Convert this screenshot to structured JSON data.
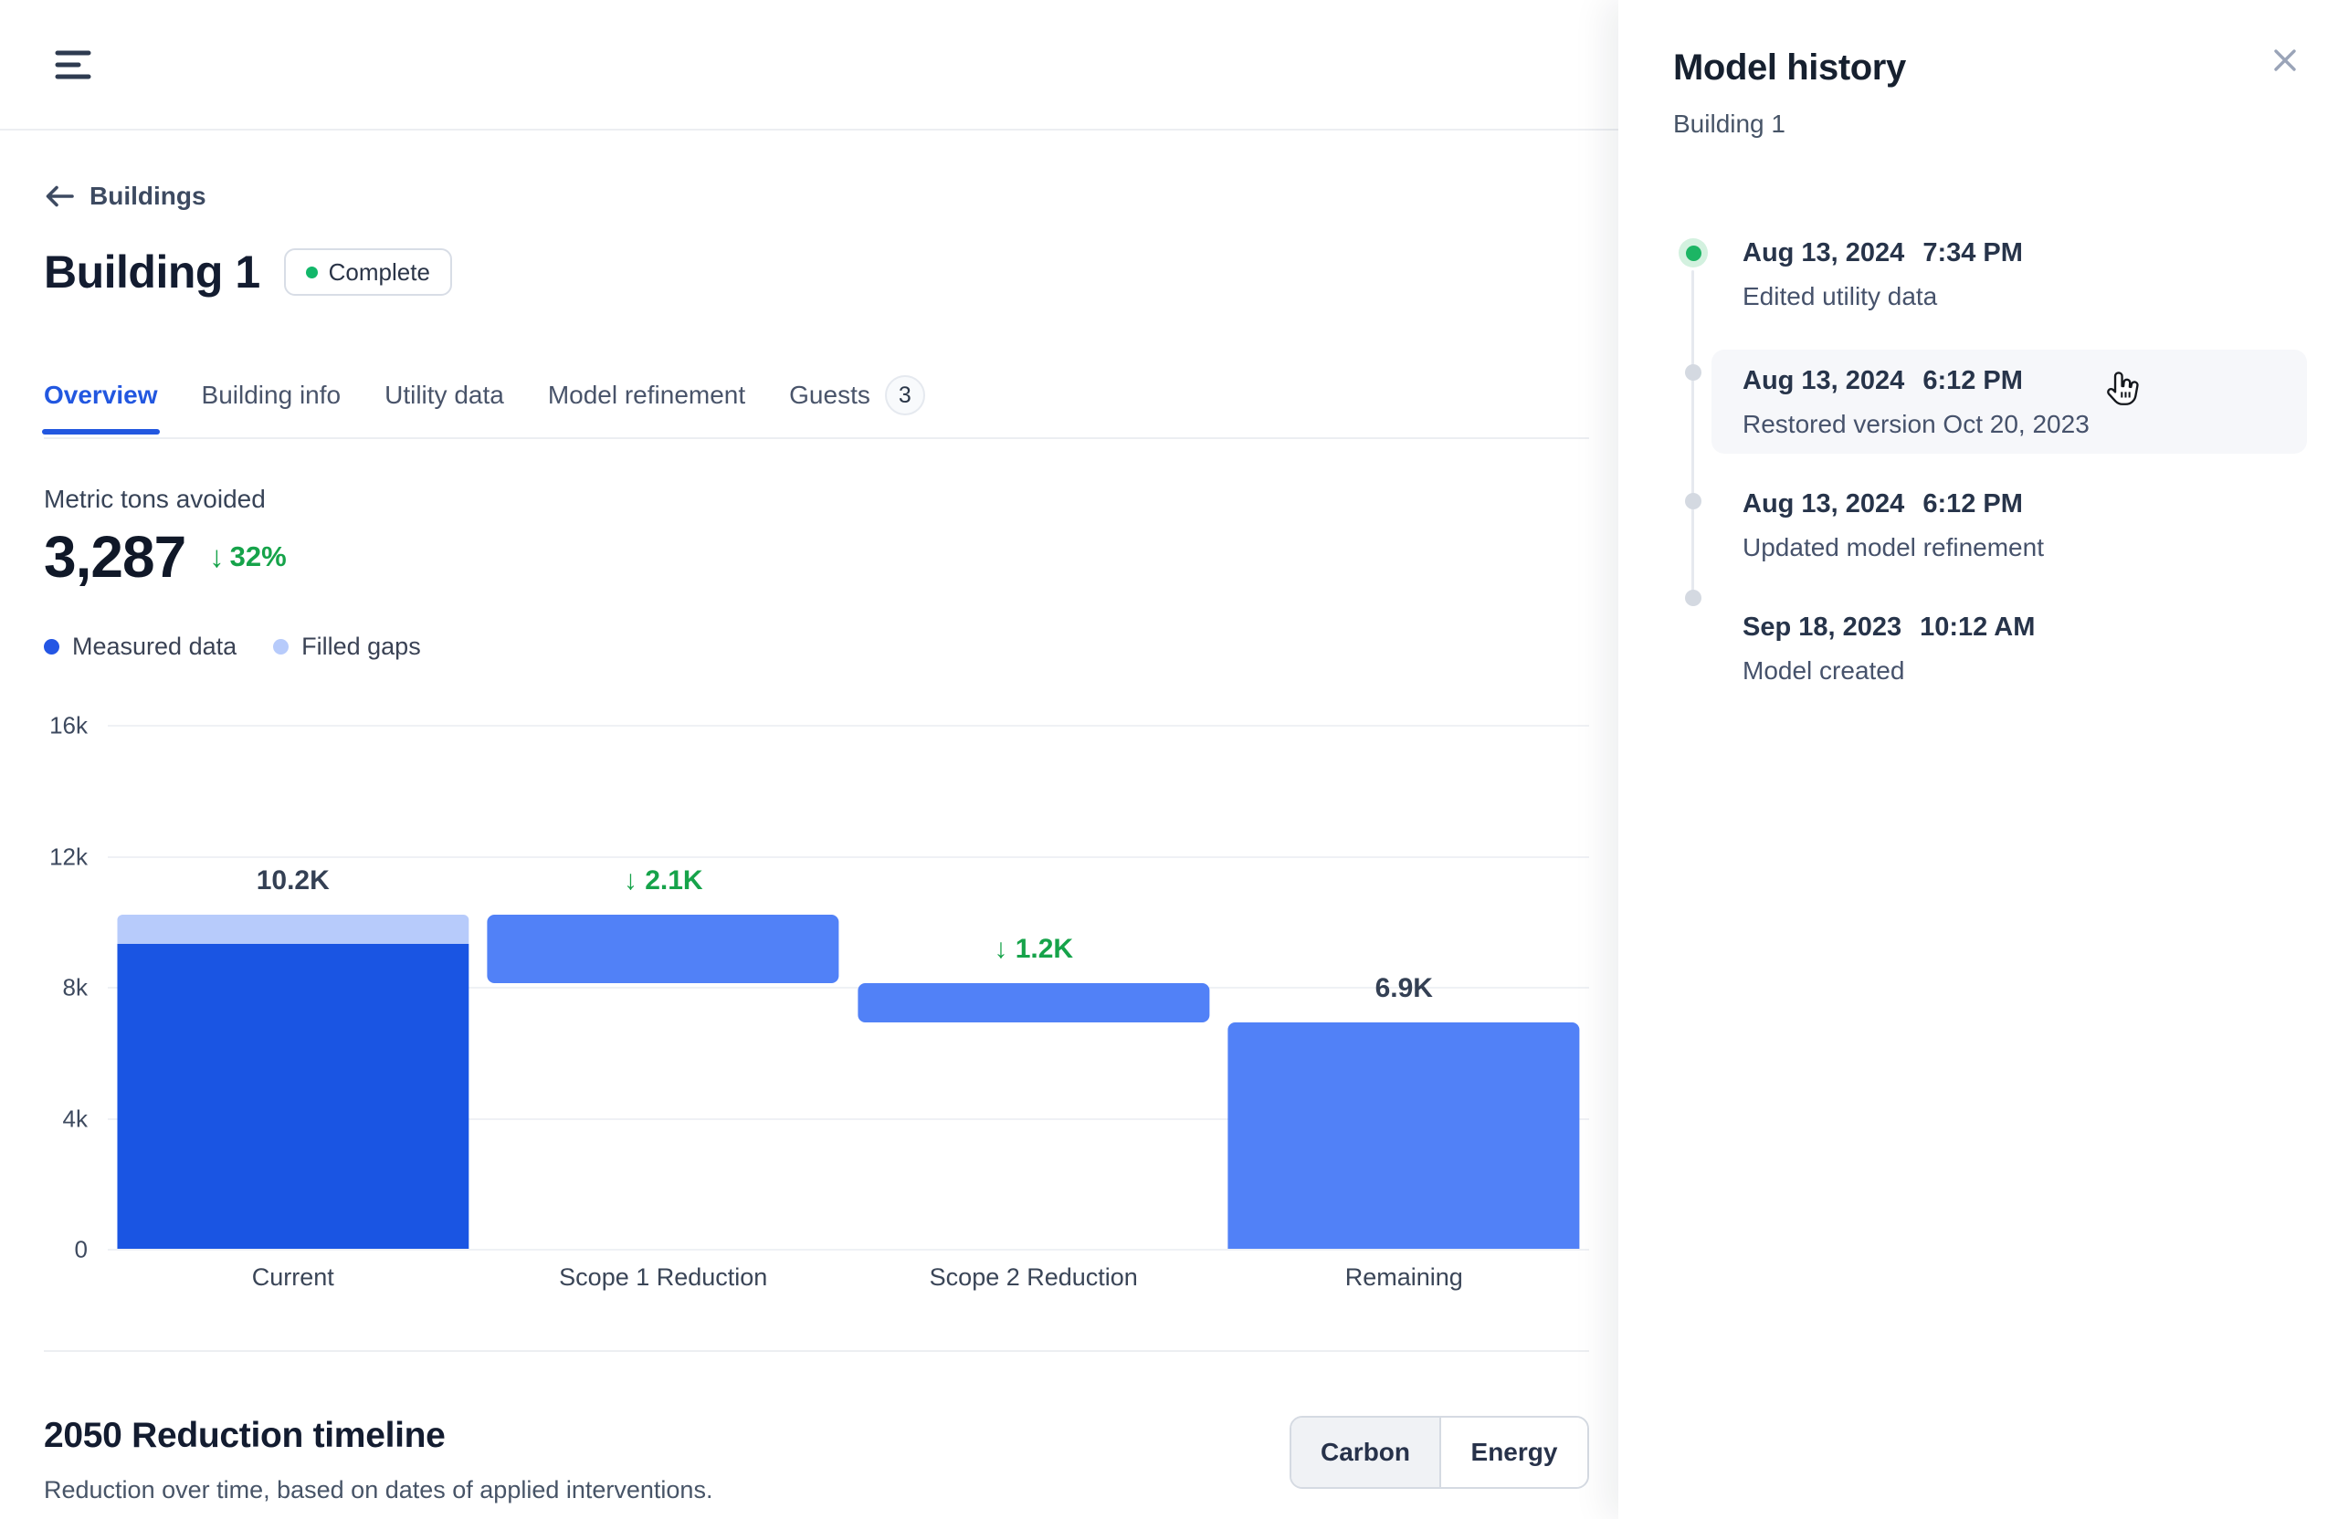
{
  "breadcrumb": {
    "label": "Buildings"
  },
  "header": {
    "title": "Building 1",
    "status": {
      "label": "Complete",
      "dot_color": "#12B76A"
    }
  },
  "tabs": [
    {
      "label": "Overview",
      "active": true
    },
    {
      "label": "Building info",
      "active": false
    },
    {
      "label": "Utility data",
      "active": false
    },
    {
      "label": "Model refinement",
      "active": false
    },
    {
      "label": "Guests",
      "active": false,
      "badge": "3"
    }
  ],
  "metric": {
    "label": "Metric tons avoided",
    "value": "3,287",
    "delta_arrow": "↓",
    "delta": "32%"
  },
  "legend": [
    {
      "label": "Measured data",
      "color": "#2456E4"
    },
    {
      "label": "Filled gaps",
      "color": "#B7CBFB"
    }
  ],
  "chart_data": {
    "type": "bar",
    "subtype": "waterfall",
    "title": "Metric tons avoided",
    "categories": [
      "Current",
      "Scope 1 Reduction",
      "Scope 2 Reduction",
      "Remaining"
    ],
    "ylim": [
      0,
      16000
    ],
    "yticks": [
      {
        "value": 16000,
        "label": "16k"
      },
      {
        "value": 12000,
        "label": "12k"
      },
      {
        "value": 8000,
        "label": "8k"
      },
      {
        "value": 4000,
        "label": "4k"
      },
      {
        "value": 0,
        "label": "0"
      }
    ],
    "grid": true,
    "legend_position": "top-left",
    "bars": [
      {
        "category": "Current",
        "from": 0,
        "to": 10200,
        "label": "10.2K",
        "label_type": "total",
        "segments": [
          {
            "name": "Measured data",
            "from": 0,
            "to": 9300,
            "color": "#1A55E3"
          },
          {
            "name": "Filled gaps",
            "from": 9300,
            "to": 10200,
            "color": "#B7CBFB"
          }
        ]
      },
      {
        "category": "Scope 1 Reduction",
        "from": 8100,
        "to": 10200,
        "label": "↓ 2.1K",
        "label_type": "reduction",
        "color": "#5181F7"
      },
      {
        "category": "Scope 2 Reduction",
        "from": 6900,
        "to": 8100,
        "label": "↓ 1.2K",
        "label_type": "reduction",
        "color": "#5181F7"
      },
      {
        "category": "Remaining",
        "from": 0,
        "to": 6900,
        "label": "6.9K",
        "label_type": "total",
        "color": "#5181F7"
      }
    ],
    "label_colors": {
      "total": "#344054",
      "reduction": "#16A34A"
    }
  },
  "reduction_section": {
    "title": "2050 Reduction timeline",
    "subtitle": "Reduction over time, based on dates of applied interventions.",
    "toggle": [
      {
        "label": "Carbon",
        "active": true
      },
      {
        "label": "Energy",
        "active": false
      }
    ]
  },
  "panel": {
    "title": "Model history",
    "subtitle": "Building 1",
    "history": [
      {
        "date": "Aug 13, 2024",
        "time": "7:34 PM",
        "description": "Edited utility data",
        "marker": "current",
        "hovered": false
      },
      {
        "date": "Aug 13, 2024",
        "time": "6:12 PM",
        "description": "Restored version Oct 20, 2023",
        "marker": "past",
        "hovered": true
      },
      {
        "date": "Aug 13, 2024",
        "time": "6:12 PM",
        "description": "Updated model refinement",
        "marker": "past",
        "hovered": false
      },
      {
        "date": "Sep 18, 2023",
        "time": "10:12 AM",
        "description": "Model created",
        "marker": "past",
        "hovered": false
      }
    ]
  }
}
